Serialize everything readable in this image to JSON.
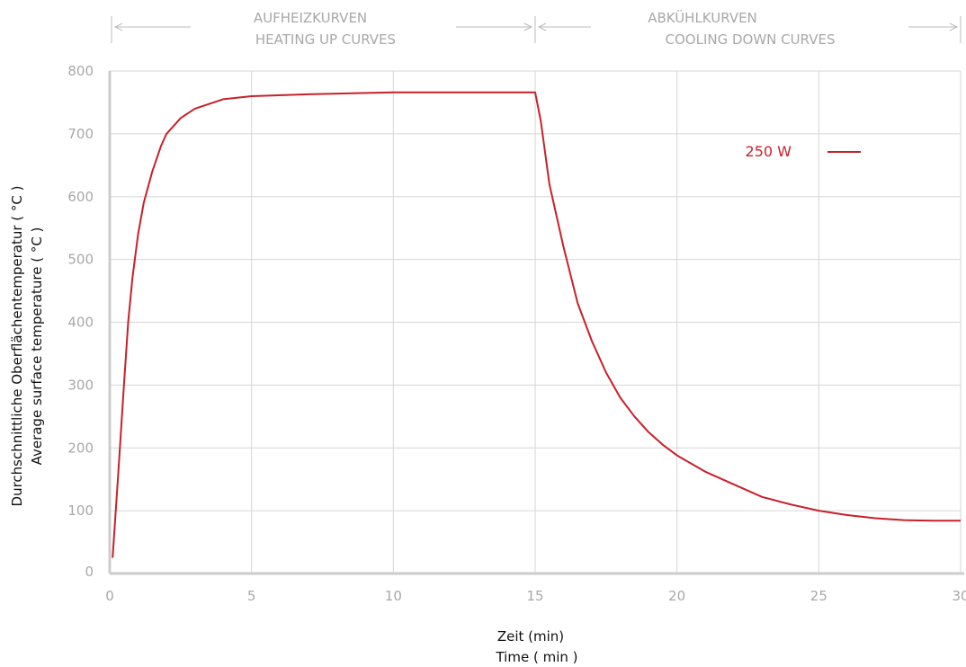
{
  "chart_data": {
    "type": "line",
    "title": "",
    "xlabel": [
      "Zeit (min)",
      "Time ( min )"
    ],
    "ylabel": [
      "Durchschnittliche Oberflächentemperatur ( °C )",
      "Average surface temperature ( °C )"
    ],
    "xlim": [
      0,
      30
    ],
    "ylim": [
      0,
      800
    ],
    "xticks": [
      0,
      5,
      10,
      15,
      20,
      25,
      30
    ],
    "yticks": [
      0,
      100,
      200,
      300,
      400,
      500,
      600,
      700,
      800
    ],
    "grid": true,
    "legend_position": "top-right",
    "phases": [
      {
        "label_de": "AUFHEIZKURVEN",
        "label_en": "HEATING UP CURVES",
        "range": [
          0,
          15
        ]
      },
      {
        "label_de": "ABKÜHLKURVEN",
        "label_en": "COOLING DOWN CURVES",
        "range": [
          15,
          30
        ]
      }
    ],
    "series": [
      {
        "name": "250 W",
        "color": "#c8202a",
        "points": [
          [
            0.1,
            25
          ],
          [
            0.3,
            160
          ],
          [
            0.5,
            300
          ],
          [
            0.65,
            400
          ],
          [
            0.8,
            470
          ],
          [
            1.0,
            540
          ],
          [
            1.2,
            590
          ],
          [
            1.5,
            640
          ],
          [
            1.8,
            680
          ],
          [
            2.0,
            700
          ],
          [
            2.5,
            725
          ],
          [
            3.0,
            740
          ],
          [
            4.0,
            755
          ],
          [
            5.0,
            760
          ],
          [
            7.0,
            763
          ],
          [
            10.0,
            766
          ],
          [
            12.0,
            766
          ],
          [
            15.0,
            766
          ],
          [
            15.2,
            720
          ],
          [
            15.5,
            620
          ],
          [
            16.0,
            520
          ],
          [
            16.5,
            430
          ],
          [
            17.0,
            370
          ],
          [
            17.5,
            320
          ],
          [
            18.0,
            280
          ],
          [
            18.5,
            250
          ],
          [
            19.0,
            225
          ],
          [
            19.5,
            205
          ],
          [
            20.0,
            188
          ],
          [
            21.0,
            162
          ],
          [
            22.0,
            142
          ],
          [
            23.0,
            122
          ],
          [
            24.0,
            110
          ],
          [
            25.0,
            100
          ],
          [
            26.0,
            93
          ],
          [
            27.0,
            88
          ],
          [
            28.0,
            85
          ],
          [
            29.0,
            84
          ],
          [
            30.0,
            84
          ]
        ]
      }
    ]
  },
  "colors": {
    "grid": "#d6d6d6",
    "axis": "#cccccc",
    "tick_text": "#a8a8a8",
    "series": "#c8202a"
  }
}
